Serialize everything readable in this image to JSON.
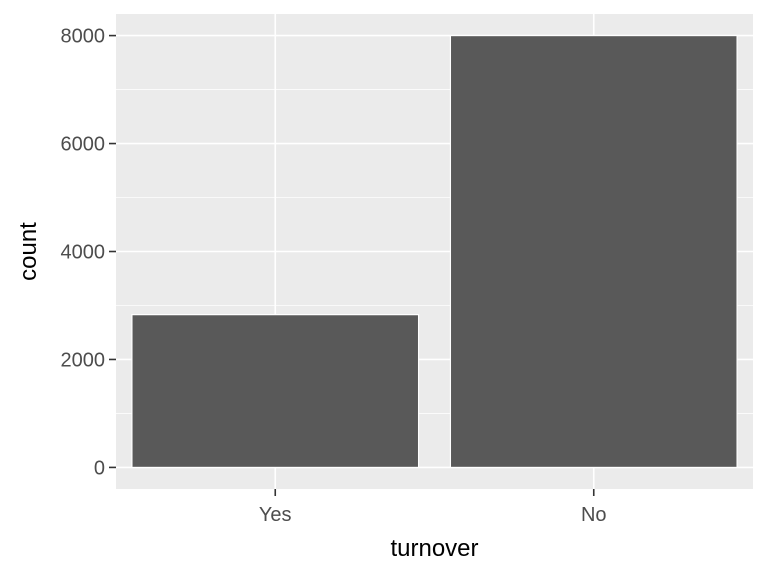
{
  "chart_data": {
    "type": "bar",
    "categories": [
      "Yes",
      "No"
    ],
    "values": [
      2830,
      8000
    ],
    "title": "",
    "xlabel": "turnover",
    "ylabel": "count",
    "ylim": [
      -400,
      8400
    ],
    "yticks": [
      0,
      2000,
      4000,
      6000,
      8000
    ],
    "yticks_labels": [
      "0",
      "2000",
      "4000",
      "6000",
      "8000"
    ],
    "grid": true,
    "legend": "none",
    "colors": {
      "panel": "#ebebeb",
      "grid_major": "#ffffff",
      "bar_fill": "#595959",
      "bar_stroke": "#ffffff",
      "tick_text": "#4d4d4d",
      "tick_mark": "#333333"
    }
  }
}
